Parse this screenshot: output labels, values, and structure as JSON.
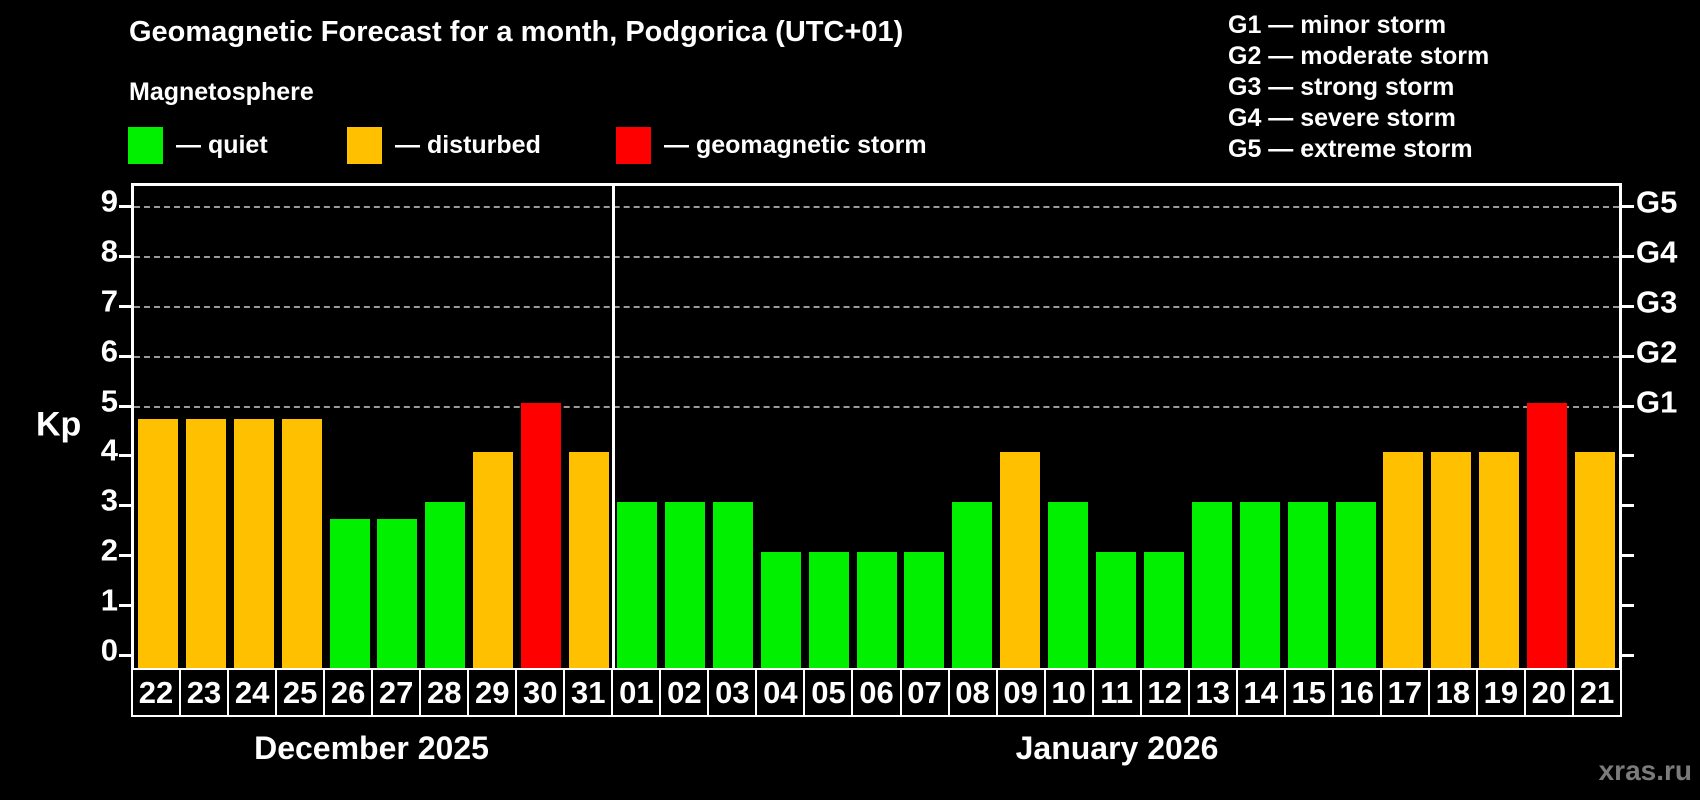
{
  "header": {
    "title": "Geomagnetic Forecast for a month, Podgorica (UTC+01)",
    "subtitle": "Magnetosphere",
    "legend": [
      {
        "key": "quiet",
        "label": "— quiet"
      },
      {
        "key": "disturbed",
        "label": "— disturbed"
      },
      {
        "key": "storm",
        "label": "— geomagnetic storm"
      }
    ],
    "g_scale_legend": [
      "G1 — minor storm",
      "G2 — moderate storm",
      "G3 — strong storm",
      "G4 — severe storm",
      "G5 — extreme storm"
    ]
  },
  "chart_data": {
    "type": "bar",
    "ylabel": "Kp",
    "ylim": [
      0,
      9.4
    ],
    "yticks": [
      0,
      1,
      2,
      3,
      4,
      5,
      6,
      7,
      8,
      9
    ],
    "gridlines_at": [
      5,
      6,
      7,
      8,
      9
    ],
    "right_axis_labels": [
      {
        "label": "G1",
        "kp": 5
      },
      {
        "label": "G2",
        "kp": 6
      },
      {
        "label": "G3",
        "kp": 7
      },
      {
        "label": "G4",
        "kp": 8
      },
      {
        "label": "G5",
        "kp": 9
      }
    ],
    "legend_position": "top-left",
    "grid": "dashed horizontal at storm levels only",
    "colors": {
      "quiet": "#00f000",
      "disturbed": "#ffc000",
      "storm": "#fe0000"
    },
    "months": [
      {
        "label": "December 2025",
        "days": [
          {
            "date": "22",
            "kp": 4.67,
            "status": "disturbed"
          },
          {
            "date": "23",
            "kp": 4.67,
            "status": "disturbed"
          },
          {
            "date": "24",
            "kp": 4.67,
            "status": "disturbed"
          },
          {
            "date": "25",
            "kp": 4.67,
            "status": "disturbed"
          },
          {
            "date": "26",
            "kp": 2.67,
            "status": "quiet"
          },
          {
            "date": "27",
            "kp": 2.67,
            "status": "quiet"
          },
          {
            "date": "28",
            "kp": 3,
            "status": "quiet"
          },
          {
            "date": "29",
            "kp": 4,
            "status": "disturbed"
          },
          {
            "date": "30",
            "kp": 5,
            "status": "storm"
          },
          {
            "date": "31",
            "kp": 4,
            "status": "disturbed"
          }
        ]
      },
      {
        "label": "January 2026",
        "days": [
          {
            "date": "01",
            "kp": 3,
            "status": "quiet"
          },
          {
            "date": "02",
            "kp": 3,
            "status": "quiet"
          },
          {
            "date": "03",
            "kp": 3,
            "status": "quiet"
          },
          {
            "date": "04",
            "kp": 2,
            "status": "quiet"
          },
          {
            "date": "05",
            "kp": 2,
            "status": "quiet"
          },
          {
            "date": "06",
            "kp": 2,
            "status": "quiet"
          },
          {
            "date": "07",
            "kp": 2,
            "status": "quiet"
          },
          {
            "date": "08",
            "kp": 3,
            "status": "quiet"
          },
          {
            "date": "09",
            "kp": 4,
            "status": "disturbed"
          },
          {
            "date": "10",
            "kp": 3,
            "status": "quiet"
          },
          {
            "date": "11",
            "kp": 2,
            "status": "quiet"
          },
          {
            "date": "12",
            "kp": 2,
            "status": "quiet"
          },
          {
            "date": "13",
            "kp": 3,
            "status": "quiet"
          },
          {
            "date": "14",
            "kp": 3,
            "status": "quiet"
          },
          {
            "date": "15",
            "kp": 3,
            "status": "quiet"
          },
          {
            "date": "16",
            "kp": 3,
            "status": "quiet"
          },
          {
            "date": "17",
            "kp": 4,
            "status": "disturbed"
          },
          {
            "date": "18",
            "kp": 4,
            "status": "disturbed"
          },
          {
            "date": "19",
            "kp": 4,
            "status": "disturbed"
          },
          {
            "date": "20",
            "kp": 5,
            "status": "storm"
          },
          {
            "date": "21",
            "kp": 4,
            "status": "disturbed"
          }
        ]
      }
    ]
  },
  "watermark": "xras.ru"
}
